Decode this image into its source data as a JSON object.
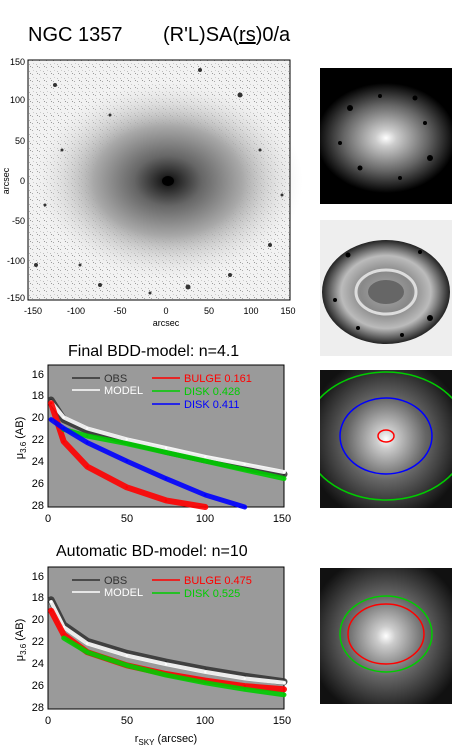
{
  "header": {
    "galaxy_name": "NGC 1357",
    "morph_pre": "(R'L)SA(",
    "morph_rs": "rs",
    "morph_post": ")0/a"
  },
  "image_panel": {
    "xlabel": "arcsec",
    "ylabel": "arcsec",
    "xticks": [
      "-150",
      "-100",
      "-50",
      "0",
      "50",
      "100",
      "150"
    ],
    "yticks": [
      "150",
      "100",
      "50",
      "0",
      "-50",
      "-100",
      "-150"
    ]
  },
  "bdd_model": {
    "title": "Final BDD-model: n=4.1",
    "legend": {
      "obs": "OBS",
      "model": "MODEL",
      "bulge_label": "BULGE",
      "bulge_value": "0.161",
      "disk1_label": "DISK",
      "disk1_value": "0.428",
      "disk2_label": "DISK",
      "disk2_value": "0.411"
    },
    "ylabel_main": "μ",
    "ylabel_sub": "3.6",
    "ylabel_unit": "(AB)",
    "xticks": [
      "0",
      "50",
      "100",
      "150"
    ],
    "yticks": [
      "16",
      "18",
      "20",
      "22",
      "24",
      "26",
      "28"
    ]
  },
  "bd_model": {
    "title": "Automatic BD-model: n=10",
    "legend": {
      "obs": "OBS",
      "model": "MODEL",
      "bulge_label": "BULGE",
      "bulge_value": "0.475",
      "disk_label": "DISK",
      "disk_value": "0.525"
    },
    "ylabel_main": "μ",
    "ylabel_sub": "3.6",
    "ylabel_unit": "(AB)",
    "xlabel_main": "r",
    "xlabel_sub": "SKY",
    "xlabel_unit": "(arcsec)",
    "xticks": [
      "0",
      "50",
      "100",
      "150"
    ],
    "yticks": [
      "16",
      "18",
      "20",
      "22",
      "24",
      "26",
      "28"
    ]
  },
  "colors": {
    "bulge": "#ff0000",
    "disk_green": "#00cc00",
    "disk_blue": "#0000ff",
    "obs": "#303030",
    "model": "#ffffff",
    "plot_bg": "#9a9a9a"
  },
  "chart_data": [
    {
      "type": "scatter",
      "title": "Final BDD-model: n=4.1",
      "xlabel": "",
      "ylabel": "μ3.6 (AB)",
      "xlim": [
        0,
        150
      ],
      "ylim": [
        28,
        15
      ],
      "series": [
        {
          "name": "OBS",
          "x": [
            2,
            10,
            25,
            50,
            75,
            100,
            125,
            150
          ],
          "y": [
            18.2,
            20.0,
            21.0,
            22.0,
            22.9,
            23.7,
            24.4,
            25.0
          ]
        },
        {
          "name": "MODEL",
          "x": [
            2,
            10,
            25,
            50,
            75,
            100,
            125,
            150
          ],
          "y": [
            18.4,
            19.8,
            20.8,
            21.8,
            22.6,
            23.4,
            24.1,
            24.8
          ]
        },
        {
          "name": "BULGE",
          "x": [
            2,
            10,
            25,
            50,
            75,
            100
          ],
          "y": [
            18.5,
            22.0,
            24.3,
            26.2,
            27.4,
            28.0
          ]
        },
        {
          "name": "DISK",
          "x": [
            10,
            25,
            50,
            75,
            100,
            125,
            150
          ],
          "y": [
            20.9,
            21.5,
            22.2,
            23.0,
            23.8,
            24.6,
            25.4
          ]
        },
        {
          "name": "DISK",
          "x": [
            2,
            10,
            25,
            50,
            75,
            100,
            125
          ],
          "y": [
            20.0,
            20.8,
            22.1,
            23.8,
            25.4,
            26.9,
            28.0
          ]
        }
      ]
    },
    {
      "type": "scatter",
      "title": "Automatic BD-model: n=10",
      "xlabel": "rSKY (arcsec)",
      "ylabel": "μ3.6 (AB)",
      "xlim": [
        0,
        150
      ],
      "ylim": [
        28,
        15
      ],
      "series": [
        {
          "name": "OBS",
          "x": [
            2,
            10,
            25,
            50,
            75,
            100,
            125,
            150
          ],
          "y": [
            18.0,
            20.3,
            21.8,
            22.9,
            23.7,
            24.4,
            25.0,
            25.5
          ]
        },
        {
          "name": "MODEL",
          "x": [
            2,
            10,
            25,
            50,
            75,
            100,
            125,
            150
          ],
          "y": [
            18.2,
            20.5,
            22.0,
            23.1,
            23.9,
            24.6,
            25.2,
            25.6
          ]
        },
        {
          "name": "BULGE",
          "x": [
            2,
            10,
            25,
            50,
            75,
            100,
            125,
            150
          ],
          "y": [
            19.0,
            21.2,
            22.8,
            24.0,
            24.8,
            25.4,
            25.9,
            26.2
          ]
        },
        {
          "name": "DISK",
          "x": [
            10,
            25,
            50,
            75,
            100,
            125,
            150
          ],
          "y": [
            21.5,
            22.8,
            24.0,
            24.9,
            25.6,
            26.2,
            26.7
          ]
        }
      ]
    }
  ]
}
